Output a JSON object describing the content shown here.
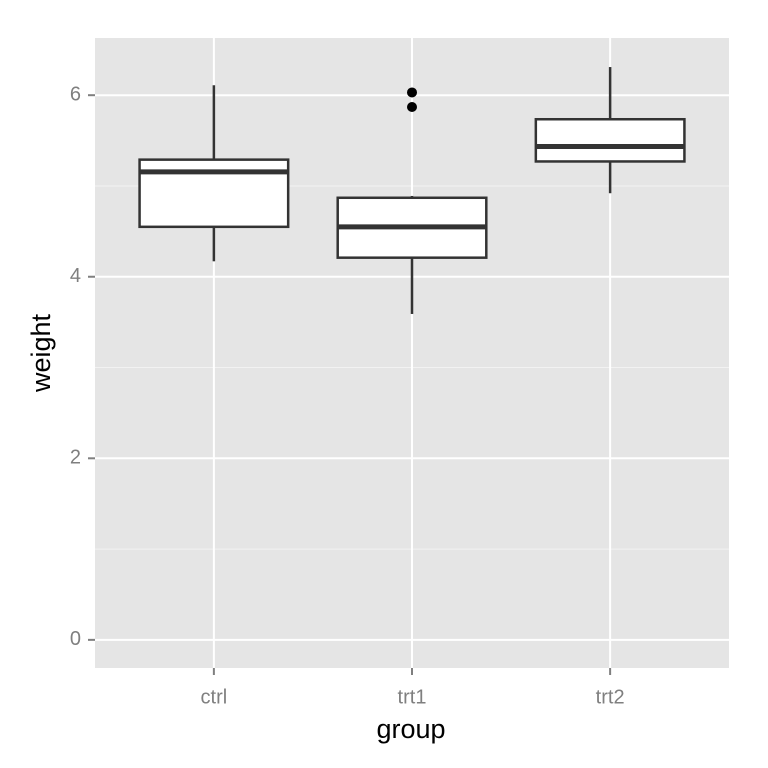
{
  "chart_data": {
    "type": "boxplot",
    "x_label": "group",
    "y_label": "weight",
    "categories": [
      "ctrl",
      "trt1",
      "trt2"
    ],
    "boxes": [
      {
        "min": 4.17,
        "q1": 4.55,
        "median": 5.155,
        "q3": 5.29,
        "max": 6.11,
        "outliers": []
      },
      {
        "min": 3.59,
        "q1": 4.21,
        "median": 4.55,
        "q3": 4.87,
        "max": 4.89,
        "outliers": [
          5.87,
          6.03
        ]
      },
      {
        "min": 4.92,
        "q1": 5.27,
        "median": 5.435,
        "q3": 5.735,
        "max": 6.31,
        "outliers": []
      }
    ],
    "ylim": [
      -0.31,
      6.63
    ],
    "yticks": [
      0,
      2,
      4,
      6
    ],
    "minor_grid": [
      1,
      3,
      5
    ],
    "grid": true,
    "panel_color": "#e5e5e5",
    "box_fill": "#ffffff",
    "line_color": "#333333"
  }
}
